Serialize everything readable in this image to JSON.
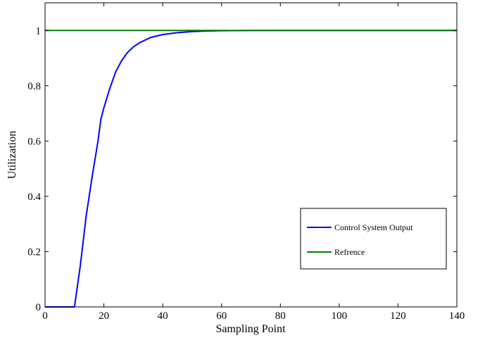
{
  "chart_data": {
    "type": "line",
    "title": "",
    "xlabel": "Sampling Point",
    "ylabel": "Utilization",
    "xlim": [
      0,
      140
    ],
    "ylim": [
      0,
      1.1
    ],
    "xticks": [
      0,
      20,
      40,
      60,
      80,
      100,
      120,
      140
    ],
    "xtick_labels": [
      "0",
      "20",
      "40",
      "60",
      "80",
      "100",
      "120",
      "140"
    ],
    "yticks": [
      0,
      0.2,
      0.4,
      0.6,
      0.8,
      1
    ],
    "ytick_labels": [
      "0",
      "0.2",
      "0.4",
      "0.6",
      "0.8",
      "1"
    ],
    "grid": false,
    "legend_position": "bottom-right",
    "series": [
      {
        "name": "Control System Output",
        "color": "#0000ff",
        "x": [
          0,
          10,
          12,
          14,
          16,
          18,
          19,
          20,
          22,
          24,
          26,
          28,
          30,
          32,
          34,
          36,
          40,
          45,
          50,
          55,
          60,
          70,
          80,
          90,
          100,
          110,
          120,
          130,
          140
        ],
        "y": [
          0,
          0,
          0.15,
          0.33,
          0.47,
          0.6,
          0.68,
          0.72,
          0.79,
          0.85,
          0.89,
          0.92,
          0.94,
          0.955,
          0.965,
          0.975,
          0.985,
          0.992,
          0.996,
          0.998,
          0.999,
          1.0,
          1.0,
          1.0,
          1.0,
          1.0,
          1.0,
          1.0,
          1.0
        ]
      },
      {
        "name": "Refrence",
        "color": "#008000",
        "x": [
          0,
          140
        ],
        "y": [
          1,
          1
        ]
      }
    ]
  }
}
